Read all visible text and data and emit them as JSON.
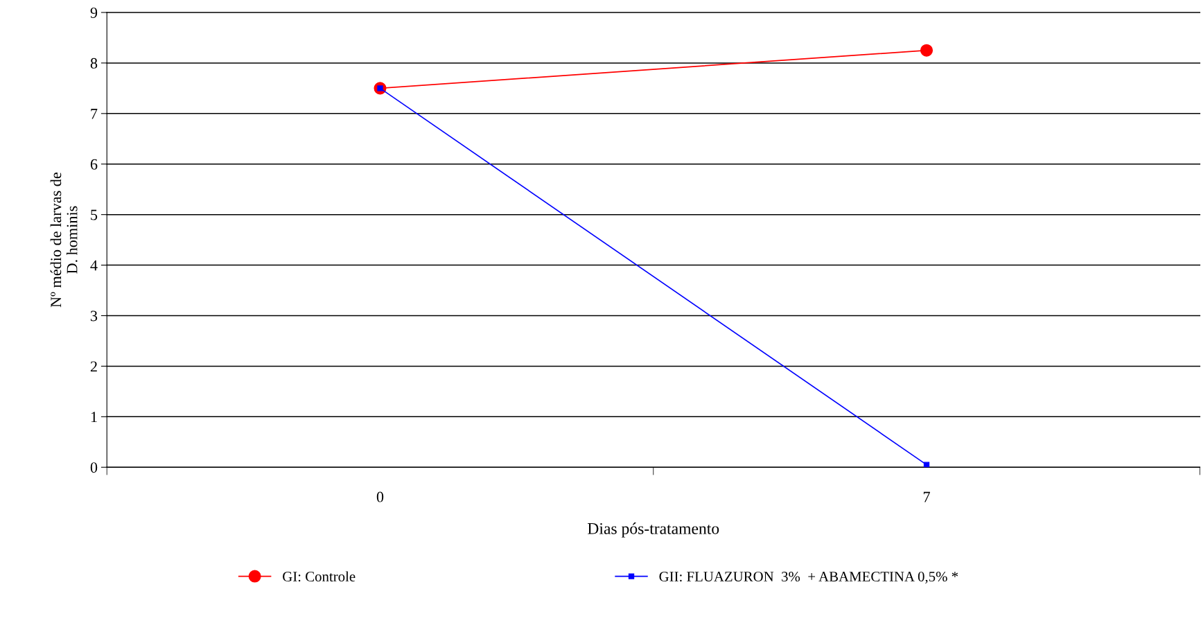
{
  "chart_data": {
    "type": "line",
    "xlabel": "Dias pós-tratamento",
    "ylabel": "Nº médio de larvas de\nD. hominis",
    "categories": [
      "0",
      "7"
    ],
    "series": [
      {
        "name": "GI: Controle",
        "color": "#ff0000",
        "values": [
          7.5,
          8.25
        ],
        "marker": "circle"
      },
      {
        "name": "GII: FLUAZURON  3%  + ABAMECTINA 0,5% *",
        "color": "#0000ff",
        "values": [
          7.5,
          0.05
        ],
        "marker": "square"
      }
    ],
    "ylim": [
      0,
      9
    ],
    "yticks": [
      0,
      1,
      2,
      3,
      4,
      5,
      6,
      7,
      8,
      9
    ],
    "grid": "y",
    "legend": "bottom",
    "line_style": "solid"
  }
}
